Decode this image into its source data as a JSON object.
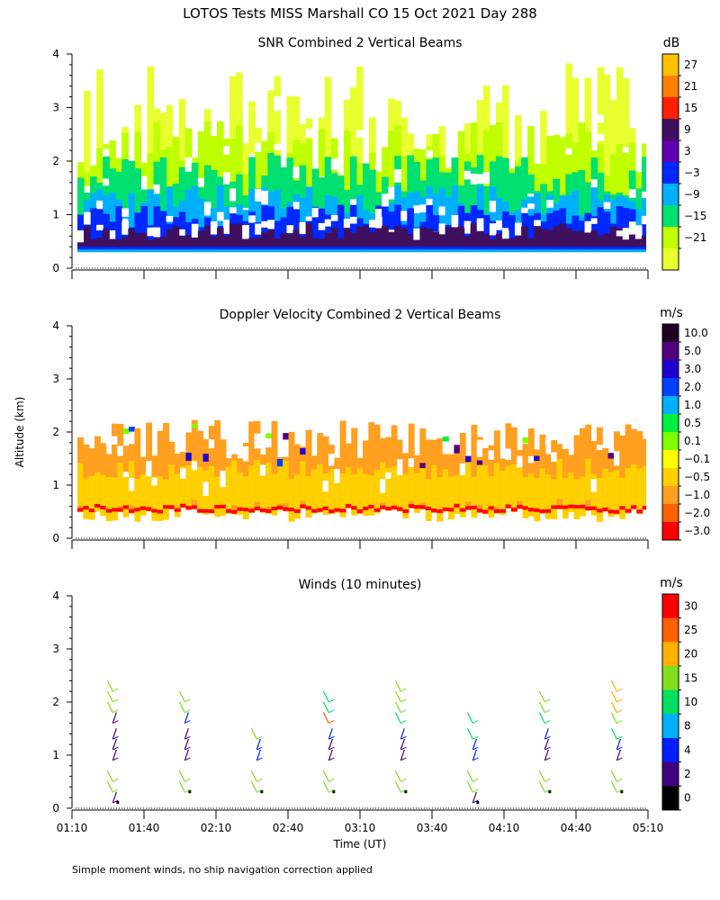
{
  "title": "LOTOS Tests MISS Marshall CO  15 Oct 2021 Day 288",
  "footnote": "Simple moment winds, no ship navigation correction applied",
  "shared_axes": {
    "ylabel": "Altitude (km)",
    "xlabel": "Time (UT)",
    "yticks": [
      "0",
      "1",
      "2",
      "3",
      "4"
    ],
    "xticks": [
      "01:10",
      "01:40",
      "02:10",
      "02:40",
      "03:10",
      "03:40",
      "04:10",
      "04:40",
      "05:10"
    ]
  },
  "chart_data": [
    {
      "type": "heatmap",
      "title": "SNR Combined 2 Vertical Beams",
      "xlabel": "",
      "ylabel": "Altitude (km)",
      "x_range": [
        "01:10",
        "05:10"
      ],
      "ylim": [
        0,
        4
      ],
      "colorbar": {
        "unit": "dB",
        "labels": [
          "27",
          "21",
          "15",
          "9",
          "3",
          "−3",
          "−9",
          "−15",
          "−21"
        ],
        "colors": [
          "#ffc000",
          "#ff8000",
          "#ff2000",
          "#401060",
          "#6000b0",
          "#0028ff",
          "#00b0ff",
          "#00e070",
          "#c0ff00",
          "#e8ff30"
        ]
      },
      "layers": [
        {
          "snr_db": "-21 (light green, sparse)",
          "base_km": 0.3,
          "top_km": 3.9
        },
        {
          "snr_db": "-21 to -15 (yellow-green)",
          "base_km": 0.3,
          "top_km": 2.3
        },
        {
          "snr_db": "-15 to -9 (green)",
          "base_km": 0.3,
          "top_km": 1.8
        },
        {
          "snr_db": "-9 to -3 (light blue)",
          "base_km": 0.3,
          "top_km": 1.3
        },
        {
          "snr_db": "-3 to 3 (blue)",
          "base_km": 0.35,
          "top_km": 1.0
        },
        {
          "snr_db": "3 to 9 (purple)",
          "base_km": 0.4,
          "top_km": 0.7
        }
      ]
    },
    {
      "type": "heatmap",
      "title": "Doppler Velocity Combined 2 Vertical Beams",
      "xlabel": "",
      "ylabel": "Altitude (km)",
      "x_range": [
        "01:10",
        "05:10"
      ],
      "ylim": [
        0,
        4
      ],
      "colorbar": {
        "unit": "m/s",
        "labels": [
          "10.0",
          "5.0",
          "3.0",
          "2.0",
          "1.0",
          "0.5",
          "0.1",
          "−0.1",
          "−0.5",
          "−1.0",
          "−2.0",
          "−3.0"
        ],
        "colors": [
          "#200020",
          "#500080",
          "#2000d0",
          "#0040ff",
          "#00b0ff",
          "#00f040",
          "#80ff00",
          "#ffff00",
          "#ffd000",
          "#ffa020",
          "#ff6000",
          "#ff0000"
        ]
      },
      "layers": [
        {
          "velocity_ms": "-0.5 to -2.0 (orange)",
          "base_km": 0.5,
          "top_km": 2.2
        },
        {
          "velocity_ms": "-0.1 to -0.5 (yellow-orange)",
          "base_km": 0.5,
          "top_km": 1.5
        },
        {
          "velocity_ms": "-2.0 to -3.0 (red edge)",
          "base_km": 0.5,
          "top_km": 0.6
        }
      ]
    },
    {
      "type": "scatter",
      "title": "Winds (10 minutes)",
      "xlabel": "Time (UT)",
      "ylabel": "Altitude (km)",
      "x_range": [
        "01:10",
        "05:10"
      ],
      "ylim": [
        0,
        4
      ],
      "colorbar": {
        "unit": "m/s",
        "labels": [
          "30",
          "25",
          "20",
          "15",
          "10",
          "8",
          "4",
          "2",
          "0"
        ],
        "colors": [
          "#ff0000",
          "#ff6000",
          "#ffb000",
          "#80e020",
          "#00e060",
          "#00b0ff",
          "#0020ff",
          "#400080",
          "#000000"
        ]
      },
      "profiles": [
        {
          "time": "01:30",
          "alt_km": [
            0.1,
            0.3,
            0.5,
            0.9,
            1.1,
            1.3,
            1.6,
            1.8,
            2.0,
            2.2
          ],
          "speed_ms": [
            2,
            15,
            15,
            3,
            3,
            3,
            3,
            15,
            15,
            15
          ]
        },
        {
          "time": "02:00",
          "alt_km": [
            0.3,
            0.5,
            0.9,
            1.1,
            1.3,
            1.6,
            1.8,
            2.0
          ],
          "speed_ms": [
            15,
            15,
            3,
            3,
            3,
            4,
            15,
            15
          ]
        },
        {
          "time": "02:30",
          "alt_km": [
            0.3,
            0.5,
            0.9,
            1.1,
            1.3
          ],
          "speed_ms": [
            15,
            15,
            4,
            4,
            15
          ]
        },
        {
          "time": "03:00",
          "alt_km": [
            0.3,
            0.5,
            0.9,
            1.1,
            1.3,
            1.6,
            1.8,
            2.0
          ],
          "speed_ms": [
            15,
            15,
            3,
            3,
            4,
            25,
            10,
            10
          ]
        },
        {
          "time": "03:30",
          "alt_km": [
            0.3,
            0.5,
            0.9,
            1.1,
            1.3,
            1.6,
            1.8,
            2.0,
            2.2
          ],
          "speed_ms": [
            15,
            15,
            3,
            3,
            4,
            10,
            15,
            15,
            15
          ]
        },
        {
          "time": "04:00",
          "alt_km": [
            0.1,
            0.3,
            0.5,
            0.9,
            1.1,
            1.3,
            1.6
          ],
          "speed_ms": [
            2,
            15,
            15,
            4,
            4,
            10,
            10
          ]
        },
        {
          "time": "04:30",
          "alt_km": [
            0.3,
            0.5,
            0.9,
            1.1,
            1.3,
            1.6,
            1.8,
            2.0
          ],
          "speed_ms": [
            15,
            15,
            2,
            3,
            4,
            10,
            15,
            15
          ]
        },
        {
          "time": "05:00",
          "alt_km": [
            0.3,
            0.5,
            0.9,
            1.1,
            1.3,
            1.6,
            1.8,
            2.0,
            2.2
          ],
          "speed_ms": [
            15,
            15,
            3,
            4,
            10,
            15,
            20,
            20,
            20
          ]
        }
      ]
    }
  ]
}
